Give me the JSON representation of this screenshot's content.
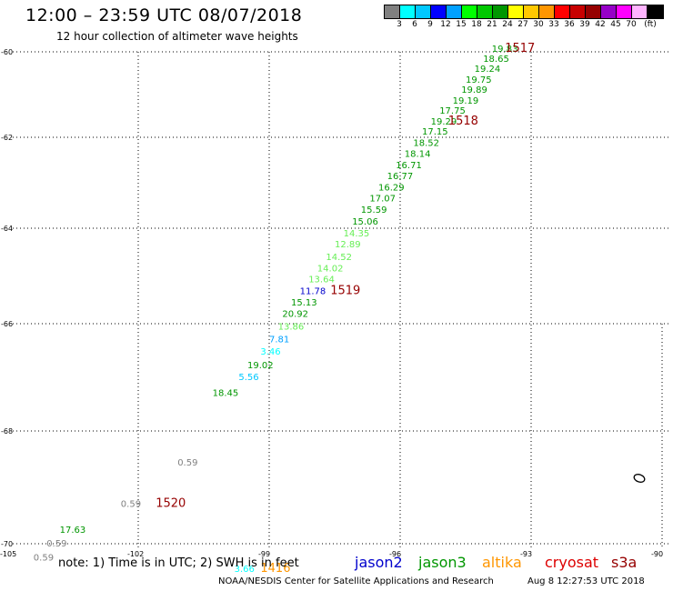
{
  "header": {
    "title": "12:00 – 23:59 UTC 08/07/2018",
    "subtitle": "12 hour collection of altimeter wave heights"
  },
  "legend": {
    "colors": [
      "#808080",
      "#00ffff",
      "#00c8ff",
      "#0000ff",
      "#00a0ff",
      "#00ff00",
      "#00c800",
      "#009600",
      "#ffff00",
      "#ffc800",
      "#ff9600",
      "#ff0000",
      "#c80000",
      "#960000",
      "#9600c8",
      "#ff00ff",
      "#ffb4ff",
      "#000000"
    ],
    "labels": [
      "3",
      "6",
      "9",
      "12",
      "15",
      "18",
      "21",
      "24",
      "27",
      "30",
      "33",
      "36",
      "39",
      "42",
      "45",
      "70",
      "(ft)"
    ]
  },
  "axes": {
    "lat_ticks": [
      "-60",
      "-62",
      "-64",
      "-66",
      "-68",
      "-70"
    ],
    "lon_ticks": [
      "-105",
      "-102",
      "-99",
      "-96",
      "-93",
      "-90"
    ]
  },
  "wave_labels": [
    {
      "text": "19.83",
      "lon": -93.9,
      "lat": -60.0,
      "color": "#009600"
    },
    {
      "text": "18.65",
      "lon": -94.1,
      "lat": -60.23,
      "color": "#009600"
    },
    {
      "text": "19.24",
      "lon": -94.3,
      "lat": -60.47,
      "color": "#009600"
    },
    {
      "text": "19.75",
      "lon": -94.5,
      "lat": -60.72,
      "color": "#009600"
    },
    {
      "text": "19.89",
      "lon": -94.6,
      "lat": -60.96,
      "color": "#009600"
    },
    {
      "text": "19.19",
      "lon": -94.8,
      "lat": -61.21,
      "color": "#009600"
    },
    {
      "text": "17.75",
      "lon": -95.1,
      "lat": -61.45,
      "color": "#009600"
    },
    {
      "text": "19.29",
      "lon": -95.3,
      "lat": -61.7,
      "color": "#009600"
    },
    {
      "text": "17.15",
      "lon": -95.5,
      "lat": -61.94,
      "color": "#009600"
    },
    {
      "text": "18.52",
      "lon": -95.7,
      "lat": -62.19,
      "color": "#009600"
    },
    {
      "text": "18.14",
      "lon": -95.9,
      "lat": -62.43,
      "color": "#009600"
    },
    {
      "text": "16.71",
      "lon": -96.1,
      "lat": -62.68,
      "color": "#009600"
    },
    {
      "text": "16.77",
      "lon": -96.3,
      "lat": -62.92,
      "color": "#009600"
    },
    {
      "text": "16.29",
      "lon": -96.5,
      "lat": -63.17,
      "color": "#009600"
    },
    {
      "text": "17.07",
      "lon": -96.7,
      "lat": -63.41,
      "color": "#009600"
    },
    {
      "text": "15.59",
      "lon": -96.9,
      "lat": -63.66,
      "color": "#009600"
    },
    {
      "text": "15.06",
      "lon": -97.1,
      "lat": -63.92,
      "color": "#009600"
    },
    {
      "text": "14.35",
      "lon": -97.3,
      "lat": -64.17,
      "color": "#66ee55"
    },
    {
      "text": "12.89",
      "lon": -97.5,
      "lat": -64.4,
      "color": "#66ee55"
    },
    {
      "text": "14.52",
      "lon": -97.7,
      "lat": -64.67,
      "color": "#66ee55"
    },
    {
      "text": "14.02",
      "lon": -97.9,
      "lat": -64.9,
      "color": "#66ee55"
    },
    {
      "text": "13.64",
      "lon": -98.1,
      "lat": -65.13,
      "color": "#66ee55"
    },
    {
      "text": "11.78",
      "lon": -98.3,
      "lat": -65.38,
      "color": "#0000cc"
    },
    {
      "text": "15.13",
      "lon": -98.5,
      "lat": -65.62,
      "color": "#009600"
    },
    {
      "text": "20.92",
      "lon": -98.7,
      "lat": -65.86,
      "color": "#009600"
    },
    {
      "text": "13.86",
      "lon": -98.8,
      "lat": -66.11,
      "color": "#66ee55"
    },
    {
      "text": "7.81",
      "lon": -99.0,
      "lat": -66.35,
      "color": "#00a0ff"
    },
    {
      "text": "3.46",
      "lon": -99.2,
      "lat": -66.58,
      "color": "#00ffff"
    },
    {
      "text": "19.02",
      "lon": -99.5,
      "lat": -66.83,
      "color": "#009600"
    },
    {
      "text": "5.56",
      "lon": -99.7,
      "lat": -67.05,
      "color": "#00c8ff"
    },
    {
      "text": "18.45",
      "lon": -100.3,
      "lat": -67.35,
      "color": "#009600"
    },
    {
      "text": "0.59",
      "lon": -101.1,
      "lat": -68.61,
      "color": "#808080"
    },
    {
      "text": "0.59",
      "lon": -102.4,
      "lat": -69.35,
      "color": "#808080"
    },
    {
      "text": "17.63",
      "lon": -103.8,
      "lat": -69.81,
      "color": "#009600"
    },
    {
      "text": "0.59",
      "lon": -104.1,
      "lat": -70.05,
      "color": "#808080"
    },
    {
      "text": "0.59",
      "lon": -104.4,
      "lat": -70.3,
      "color": "#808080"
    },
    {
      "text": "3.66",
      "lon": -99.8,
      "lat": -70.5,
      "color": "#00ffff"
    }
  ],
  "pass_labels": [
    {
      "text": "1517",
      "lon": -93.6,
      "lat": -60.0,
      "color": "#960000"
    },
    {
      "text": "1518",
      "lon": -94.9,
      "lat": -61.7,
      "color": "#960000"
    },
    {
      "text": "1519",
      "lon": -97.6,
      "lat": -65.38,
      "color": "#960000"
    },
    {
      "text": "1520",
      "lon": -101.6,
      "lat": -69.35,
      "color": "#960000"
    },
    {
      "text": "1416",
      "lon": -99.2,
      "lat": -70.5,
      "color": "#ff9600"
    }
  ],
  "note": "note:  1) Time is in UTC;  2) SWH is in feet",
  "satellites": [
    {
      "name": "jason2",
      "color": "#0000cc"
    },
    {
      "name": "jason3",
      "color": "#009600"
    },
    {
      "name": "altika",
      "color": "#ff9600"
    },
    {
      "name": "cryosat",
      "color": "#dd0000"
    },
    {
      "name": "s3a",
      "color": "#960000"
    }
  ],
  "footer": {
    "credit": "NOAA/NESDIS Center for Satellite Applications and Research",
    "timestamp": "Aug  8 12:27:53 UTC 2018"
  }
}
